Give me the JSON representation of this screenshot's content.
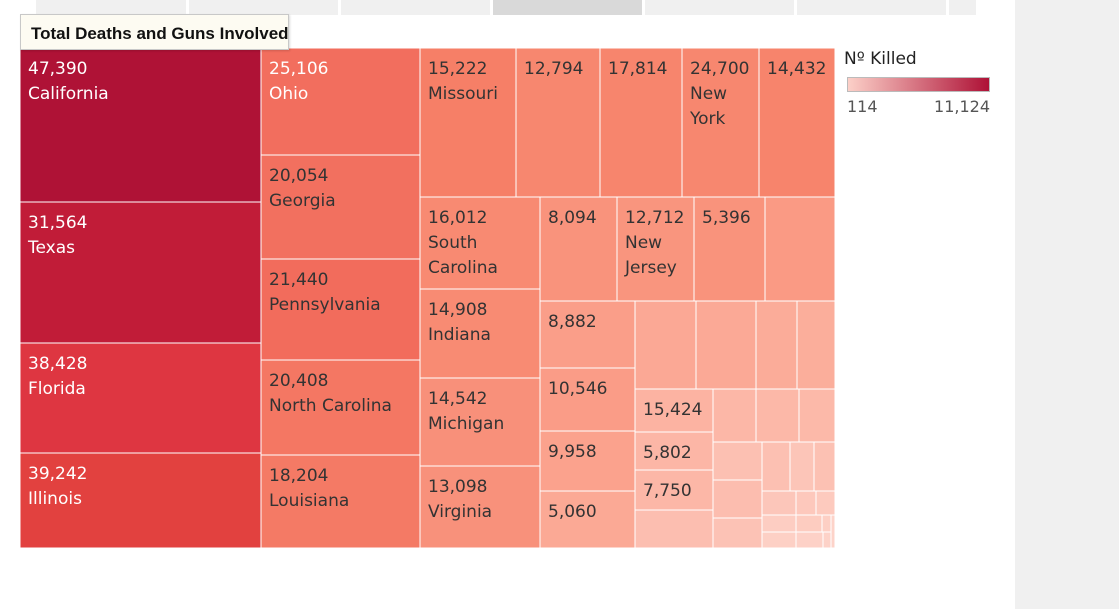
{
  "title": "Total Deaths and Guns Involved",
  "legend": {
    "title": "Nº Killed",
    "min_label": "114",
    "max_label": "11,124",
    "color_low": "#fcd0c8",
    "color_high": "#ae1136"
  },
  "chart_data": {
    "type": "treemap",
    "title": "Total Deaths and Guns Involved",
    "color_measure": "Nº Killed",
    "color_range": [
      114,
      11124
    ],
    "size_measure": "Total Deaths",
    "cells": [
      {
        "id": "california",
        "label": "California",
        "value_label": "47,390",
        "value": 47390,
        "color": "#af1236",
        "text_color": "#ffffff"
      },
      {
        "id": "texas",
        "label": "Texas",
        "value_label": "31,564",
        "value": 31564,
        "color": "#c11c38",
        "text_color": "#ffffff"
      },
      {
        "id": "florida",
        "label": "Florida",
        "value_label": "38,428",
        "value": 38428,
        "color": "#de3641",
        "text_color": "#ffffff"
      },
      {
        "id": "illinois",
        "label": "Illinois",
        "value_label": "39,242",
        "value": 39242,
        "color": "#e2413f",
        "text_color": "#ffffff"
      },
      {
        "id": "ohio",
        "label": "Ohio",
        "value_label": "25,106",
        "value": 25106,
        "color": "#f26e5e",
        "text_color": "#ffffff"
      },
      {
        "id": "georgia",
        "label": "Georgia",
        "value_label": "20,054",
        "value": 20054,
        "color": "#f2705f",
        "text_color": "#333333"
      },
      {
        "id": "pennsylvania",
        "label": "Pennsylvania",
        "value_label": "21,440",
        "value": 21440,
        "color": "#f26c5c",
        "text_color": "#333333"
      },
      {
        "id": "north-carolina",
        "label": "North Carolina",
        "value_label": "20,408",
        "value": 20408,
        "color": "#f47763",
        "text_color": "#333333"
      },
      {
        "id": "louisiana",
        "label": "Louisiana",
        "value_label": "18,204",
        "value": 18204,
        "color": "#f47a65",
        "text_color": "#333333"
      },
      {
        "id": "missouri",
        "label": "Missouri",
        "value_label": "15,222",
        "value": 15222,
        "color": "#f67f67",
        "text_color": "#333333"
      },
      {
        "id": "c-12794",
        "label": "",
        "value_label": "12,794",
        "value": 12794,
        "color": "#f7876f",
        "text_color": "#333333"
      },
      {
        "id": "c-17814",
        "label": "",
        "value_label": "17,814",
        "value": 17814,
        "color": "#f7856d",
        "text_color": "#333333"
      },
      {
        "id": "new-york",
        "label": "New York",
        "value_label": "24,700",
        "value": 24700,
        "color": "#f7876f",
        "text_color": "#333333"
      },
      {
        "id": "c-14432",
        "label": "",
        "value_label": "14,432",
        "value": 14432,
        "color": "#f7846c",
        "text_color": "#333333"
      },
      {
        "id": "south-carolina",
        "label": "South Carolina",
        "value_label": "16,012",
        "value": 16012,
        "color": "#f88a72",
        "text_color": "#333333"
      },
      {
        "id": "c-8094",
        "label": "",
        "value_label": "8,094",
        "value": 8094,
        "color": "#f9937c",
        "text_color": "#333333"
      },
      {
        "id": "new-jersey",
        "label": "New Jersey",
        "value_label": "12,712",
        "value": 12712,
        "color": "#f9957e",
        "text_color": "#333333"
      },
      {
        "id": "c-5396",
        "label": "",
        "value_label": "5,396",
        "value": 5396,
        "color": "#f9937c",
        "text_color": "#333333"
      },
      {
        "id": "c-unl-1",
        "label": "",
        "value_label": "",
        "color": "#fa9a84",
        "text_color": "#333333"
      },
      {
        "id": "indiana",
        "label": "Indiana",
        "value_label": "14,908",
        "value": 14908,
        "color": "#f88b73",
        "text_color": "#333333"
      },
      {
        "id": "c-8882",
        "label": "",
        "value_label": "8,882",
        "value": 8882,
        "color": "#fa9e89",
        "text_color": "#333333"
      },
      {
        "id": "c-unl-2",
        "label": "",
        "value_label": "",
        "color": "#fba895",
        "text_color": "#333333"
      },
      {
        "id": "c-unl-3",
        "label": "",
        "value_label": "",
        "color": "#fba996",
        "text_color": "#333333"
      },
      {
        "id": "c-unl-4",
        "label": "",
        "value_label": "",
        "color": "#fbac99",
        "text_color": "#333333"
      },
      {
        "id": "c-unl-5",
        "label": "",
        "value_label": "",
        "color": "#fbae9b",
        "text_color": "#333333"
      },
      {
        "id": "michigan",
        "label": "Michigan",
        "value_label": "14,542",
        "value": 14542,
        "color": "#f8907a",
        "text_color": "#333333"
      },
      {
        "id": "c-10546",
        "label": "",
        "value_label": "10,546",
        "value": 10546,
        "color": "#fa9c87",
        "text_color": "#333333"
      },
      {
        "id": "c-15424",
        "label": "",
        "value_label": "15,424",
        "value": 15424,
        "color": "#fcb3a2",
        "text_color": "#333333"
      },
      {
        "id": "c-unl-6",
        "label": "",
        "value_label": "",
        "color": "#fcb7a7",
        "text_color": "#333333"
      },
      {
        "id": "c-unl-7",
        "label": "",
        "value_label": "",
        "color": "#fcb8a8",
        "text_color": "#333333"
      },
      {
        "id": "c-unl-8",
        "label": "",
        "value_label": "",
        "color": "#fcb9a9",
        "text_color": "#333333"
      },
      {
        "id": "c-9958",
        "label": "",
        "value_label": "9,958",
        "value": 9958,
        "color": "#fba28d",
        "text_color": "#333333"
      },
      {
        "id": "c-5802",
        "label": "",
        "value_label": "5,802",
        "value": 5802,
        "color": "#fcb6a6",
        "text_color": "#333333"
      },
      {
        "id": "c-7750",
        "label": "",
        "value_label": "7,750",
        "value": 7750,
        "color": "#fcb7a7",
        "text_color": "#333333"
      },
      {
        "id": "virginia",
        "label": "Virginia",
        "value_label": "13,098",
        "value": 13098,
        "color": "#f8917b",
        "text_color": "#333333"
      },
      {
        "id": "c-5060",
        "label": "",
        "value_label": "5,060",
        "value": 5060,
        "color": "#fba995",
        "text_color": "#333333"
      },
      {
        "id": "c-unl-9",
        "label": "",
        "value_label": "",
        "color": "#fcbeb0",
        "text_color": "#333333"
      },
      {
        "id": "c-unl-10",
        "label": "",
        "value_label": "",
        "color": "#fcc0b2",
        "text_color": "#333333"
      },
      {
        "id": "c-unl-11",
        "label": "",
        "value_label": "",
        "color": "#fcbdaf",
        "text_color": "#333333"
      },
      {
        "id": "c-unl-12",
        "label": "",
        "value_label": "",
        "color": "#fcc2b5",
        "text_color": "#333333"
      },
      {
        "id": "c-unl-13",
        "label": "",
        "value_label": "",
        "color": "#fcc0b2",
        "text_color": "#333333"
      },
      {
        "id": "c-unl-14",
        "label": "",
        "value_label": "",
        "color": "#fcc5b8",
        "text_color": "#333333"
      },
      {
        "id": "c-unl-15",
        "label": "",
        "value_label": "",
        "color": "#fcc1b3",
        "text_color": "#333333"
      },
      {
        "id": "c-unl-16",
        "label": "",
        "value_label": "",
        "color": "#fcc6ba",
        "text_color": "#333333"
      },
      {
        "id": "c-unl-17",
        "label": "",
        "value_label": "",
        "color": "#fdc8bc",
        "text_color": "#333333"
      },
      {
        "id": "c-unl-18",
        "label": "",
        "value_label": "",
        "color": "#fdcabe",
        "text_color": "#333333"
      },
      {
        "id": "c-unl-19",
        "label": "",
        "value_label": "",
        "color": "#fdcdc2",
        "text_color": "#333333"
      },
      {
        "id": "c-unl-20",
        "label": "",
        "value_label": "",
        "color": "#fdccc0",
        "text_color": "#333333"
      },
      {
        "id": "c-unl-21",
        "label": "",
        "value_label": "",
        "color": "#fdcfc4",
        "text_color": "#333333"
      },
      {
        "id": "c-unl-22",
        "label": "",
        "value_label": "",
        "color": "#fdd0c5",
        "text_color": "#333333"
      },
      {
        "id": "c-unl-23",
        "label": "",
        "value_label": "",
        "color": "#fdd1c7",
        "text_color": "#333333"
      },
      {
        "id": "c-unl-24",
        "label": "",
        "value_label": "",
        "color": "#fdd2c8",
        "text_color": "#333333"
      },
      {
        "id": "c-unl-25",
        "label": "",
        "value_label": "",
        "color": "#fdd3c9",
        "text_color": "#333333"
      }
    ]
  }
}
